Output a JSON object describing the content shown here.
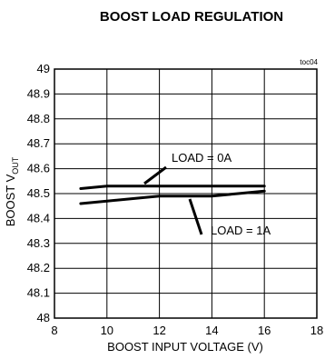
{
  "chart_data": {
    "type": "line",
    "title": "BOOST LOAD REGULATION",
    "tag": "toc04",
    "xlabel": "BOOST INPUT VOLTAGE (V)",
    "ylabel_main": "BOOST V",
    "ylabel_sub": "OUT",
    "xlim": [
      8,
      18
    ],
    "ylim": [
      48,
      49
    ],
    "xticks": [
      8,
      10,
      12,
      14,
      16,
      18
    ],
    "yticks": [
      48,
      48.1,
      48.2,
      48.3,
      48.4,
      48.5,
      48.6,
      48.7,
      48.8,
      48.9,
      49
    ],
    "grid": true,
    "series": [
      {
        "name": "LOAD = 0A",
        "x": [
          9,
          10,
          10.5,
          11,
          12,
          13,
          14,
          15,
          16
        ],
        "y": [
          48.52,
          48.53,
          48.53,
          48.53,
          48.53,
          48.53,
          48.53,
          48.53,
          48.53
        ]
      },
      {
        "name": "LOAD = 1A",
        "x": [
          9,
          10,
          11,
          12,
          12.5,
          13,
          14,
          15,
          16
        ],
        "y": [
          48.46,
          48.47,
          48.48,
          48.49,
          48.49,
          48.49,
          48.49,
          48.5,
          48.51
        ]
      }
    ],
    "annotations": [
      {
        "text": "LOAD = 0A",
        "series": 0
      },
      {
        "text": "LOAD = 1A",
        "series": 1
      }
    ]
  }
}
